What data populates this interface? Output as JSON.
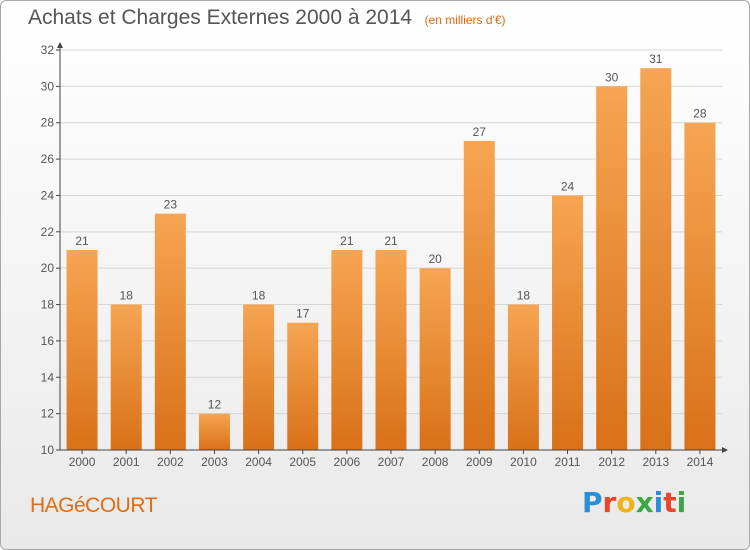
{
  "header": {
    "title": "Achats et Charges Externes 2000 à 2014",
    "subtitle": "(en milliers d'€)"
  },
  "footer": {
    "commune": "HAGéCOURT",
    "logo_text": "Proxiti",
    "logo_letters": [
      {
        "char": "P",
        "color": "#2a8fd6"
      },
      {
        "char": "r",
        "color": "#e8462a"
      },
      {
        "char": "o",
        "color": "#f3b21b"
      },
      {
        "char": "x",
        "color": "#3aa843"
      },
      {
        "char": "i",
        "color": "#2a8fd6"
      },
      {
        "char": "t",
        "color": "#e8462a"
      },
      {
        "char": "i",
        "color": "#3aa843"
      }
    ]
  },
  "colors": {
    "bar_top": "#f6a552",
    "bar_bottom": "#d97118",
    "axis": "#444444",
    "grid": "#d6d6d6"
  },
  "chart_data": {
    "type": "bar",
    "categories": [
      "2000",
      "2001",
      "2002",
      "2003",
      "2004",
      "2005",
      "2006",
      "2007",
      "2008",
      "2009",
      "2010",
      "2011",
      "2012",
      "2013",
      "2014"
    ],
    "values": [
      21,
      18,
      23,
      12,
      18,
      17,
      21,
      21,
      20,
      27,
      18,
      24,
      30,
      31,
      28
    ],
    "ylim": [
      10,
      32
    ],
    "yticks": [
      10,
      12,
      14,
      16,
      18,
      20,
      22,
      24,
      26,
      28,
      30,
      32
    ],
    "grid": true,
    "data_labels": true
  }
}
